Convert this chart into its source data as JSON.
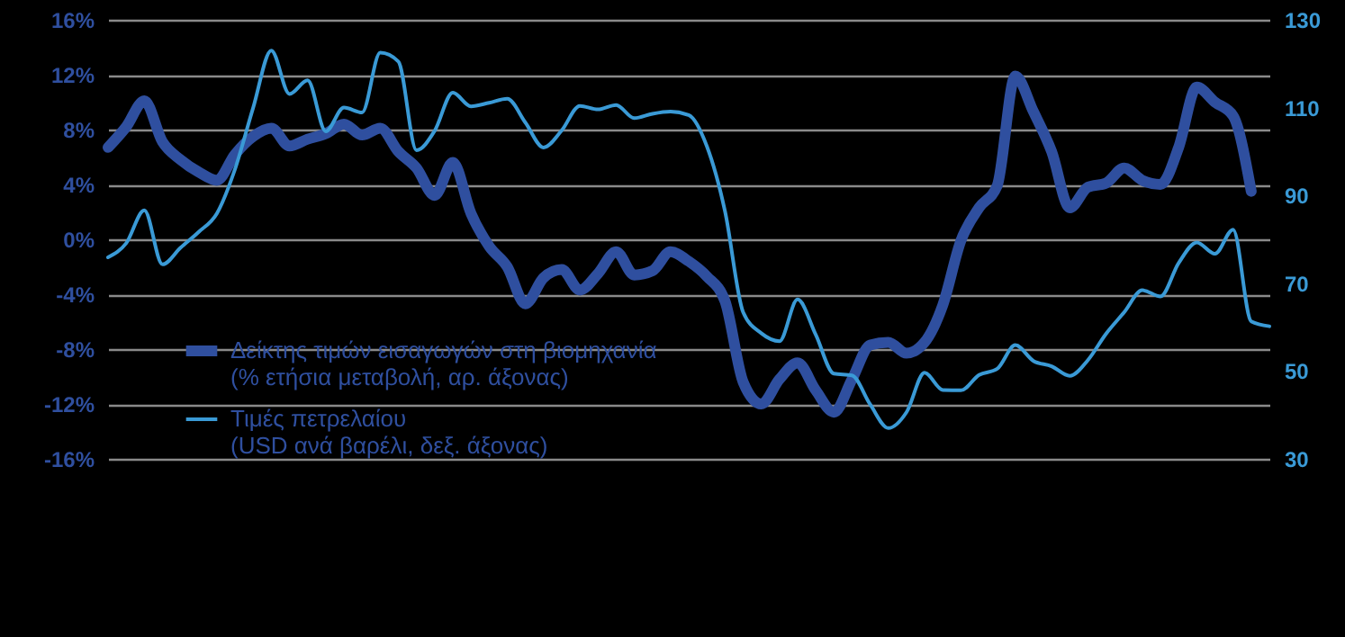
{
  "chart_data": {
    "type": "line",
    "categories": [
      null,
      null,
      null,
      null,
      null,
      null,
      null,
      null,
      null,
      null,
      null,
      null,
      null,
      null,
      null,
      null,
      null,
      null,
      null,
      null,
      null,
      null,
      null,
      null,
      null,
      null,
      null,
      null,
      null,
      null,
      null,
      null,
      null,
      null,
      null,
      null,
      null,
      null,
      null,
      null,
      null,
      null,
      null,
      null,
      null,
      null,
      null,
      null,
      null,
      null,
      null,
      null,
      null,
      null,
      null,
      null,
      null,
      null,
      null,
      null,
      null,
      null,
      null,
      null,
      null
    ],
    "series": [
      {
        "name": "Δείκτης τιμών εισαγωγών στη βιομηχανία (% ετήσια μεταβολή, αρ. άξονας)",
        "color": "#2f4f9f",
        "values": [
          6.7,
          8.2,
          10.1,
          7.1,
          5.8,
          4.9,
          4.3,
          6.2,
          7.5,
          8.1,
          6.8,
          7.3,
          7.7,
          8.4,
          7.6,
          8.1,
          6.4,
          5.2,
          3.2,
          5.6,
          1.9,
          -0.5,
          -2.0,
          -4.7,
          -2.8,
          -2.2,
          -3.7,
          -2.5,
          -0.9,
          -2.6,
          -2.3,
          -0.9,
          -1.6,
          -2.7,
          -4.5,
          -10.4,
          -12.0,
          -10.2,
          -9.0,
          -11.0,
          -12.6,
          -10.2,
          -7.7,
          -7.5,
          -8.3,
          -7.5,
          -4.8,
          -0.1,
          2.3,
          3.9,
          11.9,
          9.3,
          6.4,
          2.3,
          3.8,
          4.1,
          5.2,
          4.3,
          4.0,
          6.7,
          11.1,
          10.0,
          9.0,
          3.5,
          null
        ]
      },
      {
        "name": "Τιμές πετρελαίου (USD ανά βαρέλι, δεξ. άξονας)",
        "color": "#3a9ad6",
        "axis": "y2",
        "values": [
          75.9,
          79.1,
          86.6,
          74.3,
          78.1,
          81.7,
          85.9,
          96.0,
          110.0,
          123.0,
          113.1,
          116.2,
          104.6,
          110.0,
          108.9,
          122.5,
          120.5,
          100.3,
          104.7,
          113.4,
          110.3,
          111.1,
          112.0,
          106.6,
          100.9,
          104.8,
          110.4,
          109.6,
          110.6,
          107.6,
          108.6,
          109.1,
          108.3,
          101.2,
          86.4,
          63.4,
          58.6,
          56.8,
          66.3,
          58.3,
          49.4,
          49.0,
          42.4,
          37.0,
          40.6,
          49.6,
          45.7,
          45.6,
          49.1,
          50.5,
          55.9,
          52.3,
          51.1,
          48.9,
          52.5,
          58.5,
          63.4,
          68.4,
          67.0,
          74.6,
          79.3,
          76.7,
          82.2,
          61.3,
          60.2
        ]
      }
    ],
    "ylim": [
      -16,
      16
    ],
    "yticks": [
      {
        "value": -16,
        "label": "-16%"
      },
      {
        "value": -12,
        "label": "-12%"
      },
      {
        "value": -8,
        "label": "-8%"
      },
      {
        "value": -4,
        "label": "-4%"
      },
      {
        "value": 0,
        "label": "0%"
      },
      {
        "value": 4,
        "label": "4%"
      },
      {
        "value": 8,
        "label": "8%"
      },
      {
        "value": 12,
        "label": "12%"
      },
      {
        "value": 16,
        "label": "16%"
      }
    ],
    "y2lim": [
      30,
      130
    ],
    "y2ticks": [
      30,
      50,
      70,
      90,
      110,
      130
    ],
    "grid": "y",
    "legend": "bottom left"
  }
}
